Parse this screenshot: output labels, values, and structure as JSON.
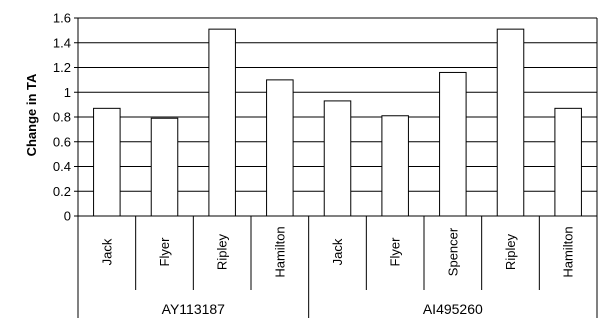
{
  "chart_data": {
    "type": "bar",
    "title": "",
    "xlabel": "",
    "ylabel": "Change in TA",
    "ylim": [
      0,
      1.6
    ],
    "yticks": [
      "0",
      "0.2",
      "0.4",
      "0.6",
      "0.8",
      "1",
      "1.2",
      "1.4",
      "1.6"
    ],
    "grid": true,
    "legend": "none",
    "groups": [
      {
        "label": "AY113187",
        "categories": [
          "Jack",
          "Flyer",
          "Ripley",
          "Hamilton"
        ],
        "values": [
          0.87,
          0.79,
          1.51,
          1.1
        ]
      },
      {
        "label": "AI495260",
        "categories": [
          "Jack",
          "Flyer",
          "Spencer",
          "Ripley",
          "Hamilton"
        ],
        "values": [
          0.93,
          0.81,
          1.16,
          1.51,
          0.87
        ]
      }
    ],
    "colors": {
      "bar_fill": "#ffffff",
      "bar_stroke": "#000000",
      "grid": "#000000"
    }
  }
}
